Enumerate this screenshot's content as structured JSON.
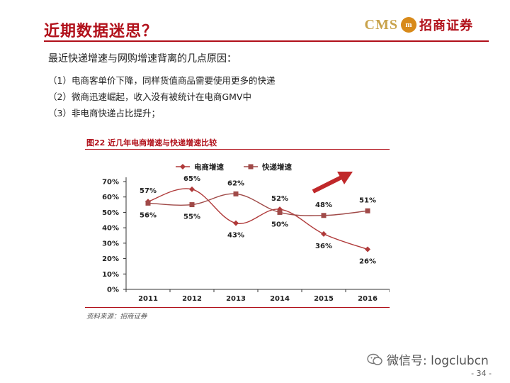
{
  "slide": {
    "title": "近期数据迷思？",
    "logo": {
      "cms": "CMS",
      "mark": "m",
      "name": "招商证券"
    },
    "intro": "最近快递增速与网购增速背离的几点原因：",
    "reasons": [
      "（1）电商客单价下降，同样货值商品需要使用更多的快递",
      "（2）微商迅速崛起，收入没有被统计在电商GMV中",
      "（3）非电商快递占比提升；"
    ],
    "figure_title": "图22  近几年电商增速与快递增速比较",
    "source": "资料来源：招商证券",
    "watermark": "微信号: logclubcn",
    "page_number": "- 34 -"
  },
  "colors": {
    "accent": "#b1101a",
    "series_ecommerce": "#b03a3a",
    "series_express": "#a04a48",
    "arrow": "#c0282a"
  },
  "icons": {
    "watermark": "wechat-icon",
    "trend": "up-arrow-icon"
  },
  "chart_data": {
    "type": "line",
    "categories": [
      "2011",
      "2012",
      "2013",
      "2014",
      "2015",
      "2016"
    ],
    "series": [
      {
        "name": "电商增速",
        "marker": "diamond",
        "values": [
          57,
          65,
          43,
          52,
          36,
          26
        ]
      },
      {
        "name": "快递增速",
        "marker": "square",
        "values": [
          56,
          55,
          62,
          50,
          48,
          51
        ]
      }
    ],
    "data_labels": [
      {
        "series": 0,
        "index": 0,
        "text": "57%"
      },
      {
        "series": 1,
        "index": 0,
        "text": "56%"
      },
      {
        "series": 1,
        "index": 1,
        "text": "55%"
      },
      {
        "series": 0,
        "index": 1,
        "text": "65%"
      },
      {
        "series": 1,
        "index": 2,
        "text": "62%"
      },
      {
        "series": 0,
        "index": 2,
        "text": "43%"
      },
      {
        "series": 0,
        "index": 3,
        "text": "52%"
      },
      {
        "series": 1,
        "index": 3,
        "text": "50%"
      },
      {
        "series": 1,
        "index": 4,
        "text": "48%"
      },
      {
        "series": 0,
        "index": 4,
        "text": "36%"
      },
      {
        "series": 1,
        "index": 5,
        "text": "51%"
      },
      {
        "series": 0,
        "index": 5,
        "text": "26%"
      }
    ],
    "y_ticks": [
      "0%",
      "10%",
      "20%",
      "30%",
      "40%",
      "50%",
      "60%",
      "70%"
    ],
    "ylim": [
      0,
      70
    ],
    "grid": false,
    "legend_position": "top"
  }
}
